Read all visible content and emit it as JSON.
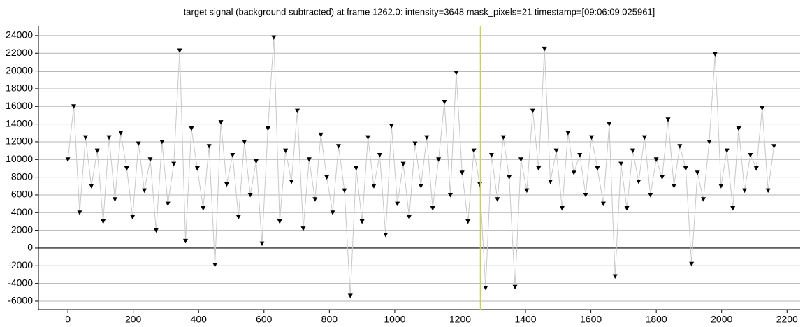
{
  "chart_data": {
    "type": "line",
    "title": "target signal (background subtracted) at frame 1262.0: intensity=3648 mask_pixels=21 timestamp=[09:06:09.025961]",
    "x": [
      0,
      18,
      36,
      54,
      72,
      90,
      108,
      126,
      144,
      162,
      180,
      198,
      216,
      234,
      252,
      270,
      288,
      306,
      324,
      342,
      360,
      378,
      396,
      414,
      432,
      450,
      468,
      486,
      504,
      522,
      540,
      558,
      576,
      594,
      612,
      630,
      648,
      666,
      684,
      702,
      720,
      738,
      756,
      774,
      792,
      810,
      828,
      846,
      864,
      882,
      900,
      918,
      936,
      954,
      972,
      990,
      1008,
      1026,
      1044,
      1062,
      1080,
      1098,
      1116,
      1134,
      1152,
      1170,
      1188,
      1206,
      1224,
      1242,
      1260,
      1278,
      1296,
      1314,
      1332,
      1350,
      1368,
      1386,
      1404,
      1422,
      1440,
      1458,
      1476,
      1494,
      1512,
      1530,
      1548,
      1566,
      1584,
      1602,
      1620,
      1638,
      1656,
      1674,
      1692,
      1710,
      1728,
      1746,
      1764,
      1782,
      1800,
      1818,
      1836,
      1854,
      1872,
      1890,
      1908,
      1926,
      1944,
      1962,
      1980,
      1998,
      2016,
      2034,
      2052,
      2070,
      2088,
      2106,
      2124,
      2142,
      2160
    ],
    "series": [
      {
        "name": "target signal",
        "color": "#000000",
        "line_color": "#c8c8c8",
        "values": [
          10000,
          16000,
          4000,
          12500,
          7000,
          11000,
          3000,
          12500,
          5500,
          13000,
          9000,
          3500,
          11800,
          6500,
          10000,
          2000,
          12000,
          5000,
          9500,
          22300,
          800,
          13500,
          9000,
          4500,
          11500,
          -1900,
          14200,
          7200,
          10500,
          3500,
          12000,
          6000,
          9800,
          500,
          13500,
          23800,
          3000,
          11000,
          7500,
          15500,
          2200,
          10000,
          5500,
          12800,
          8000,
          4000,
          11500,
          6500,
          -5400,
          9000,
          3000,
          12500,
          7000,
          10500,
          1500,
          13800,
          5000,
          9500,
          3500,
          11800,
          7000,
          12500,
          4500,
          10000,
          16500,
          6000,
          19800,
          8500,
          3000,
          11000,
          7200,
          -4500,
          10500,
          5500,
          12500,
          8000,
          -4400,
          10000,
          6500,
          15500,
          9000,
          22500,
          7500,
          11000,
          4500,
          13000,
          8500,
          10500,
          6000,
          12500,
          9000,
          5000,
          14000,
          -3200,
          9500,
          4500,
          11000,
          7500,
          12500,
          6000,
          10000,
          8000,
          14500,
          7000,
          11500,
          9000,
          -1800,
          8500,
          5500,
          12000,
          21900,
          7000,
          11000,
          4500,
          13500,
          6500,
          10500,
          9000,
          15800,
          6500,
          11500
        ]
      }
    ],
    "xlim": [
      -90,
      2240
    ],
    "ylim": [
      -6950,
      25100
    ],
    "xticks": [
      0,
      200,
      400,
      600,
      800,
      1000,
      1200,
      1400,
      1600,
      1800,
      2000,
      2200
    ],
    "yticks": [
      -6000,
      -4000,
      -2000,
      0,
      2000,
      4000,
      6000,
      8000,
      10000,
      12000,
      14000,
      16000,
      18000,
      20000,
      22000,
      24000
    ],
    "grid": true,
    "hlines": [
      0,
      20000
    ],
    "cursor_x": 1262,
    "cursor_color": "#c8d25a"
  }
}
